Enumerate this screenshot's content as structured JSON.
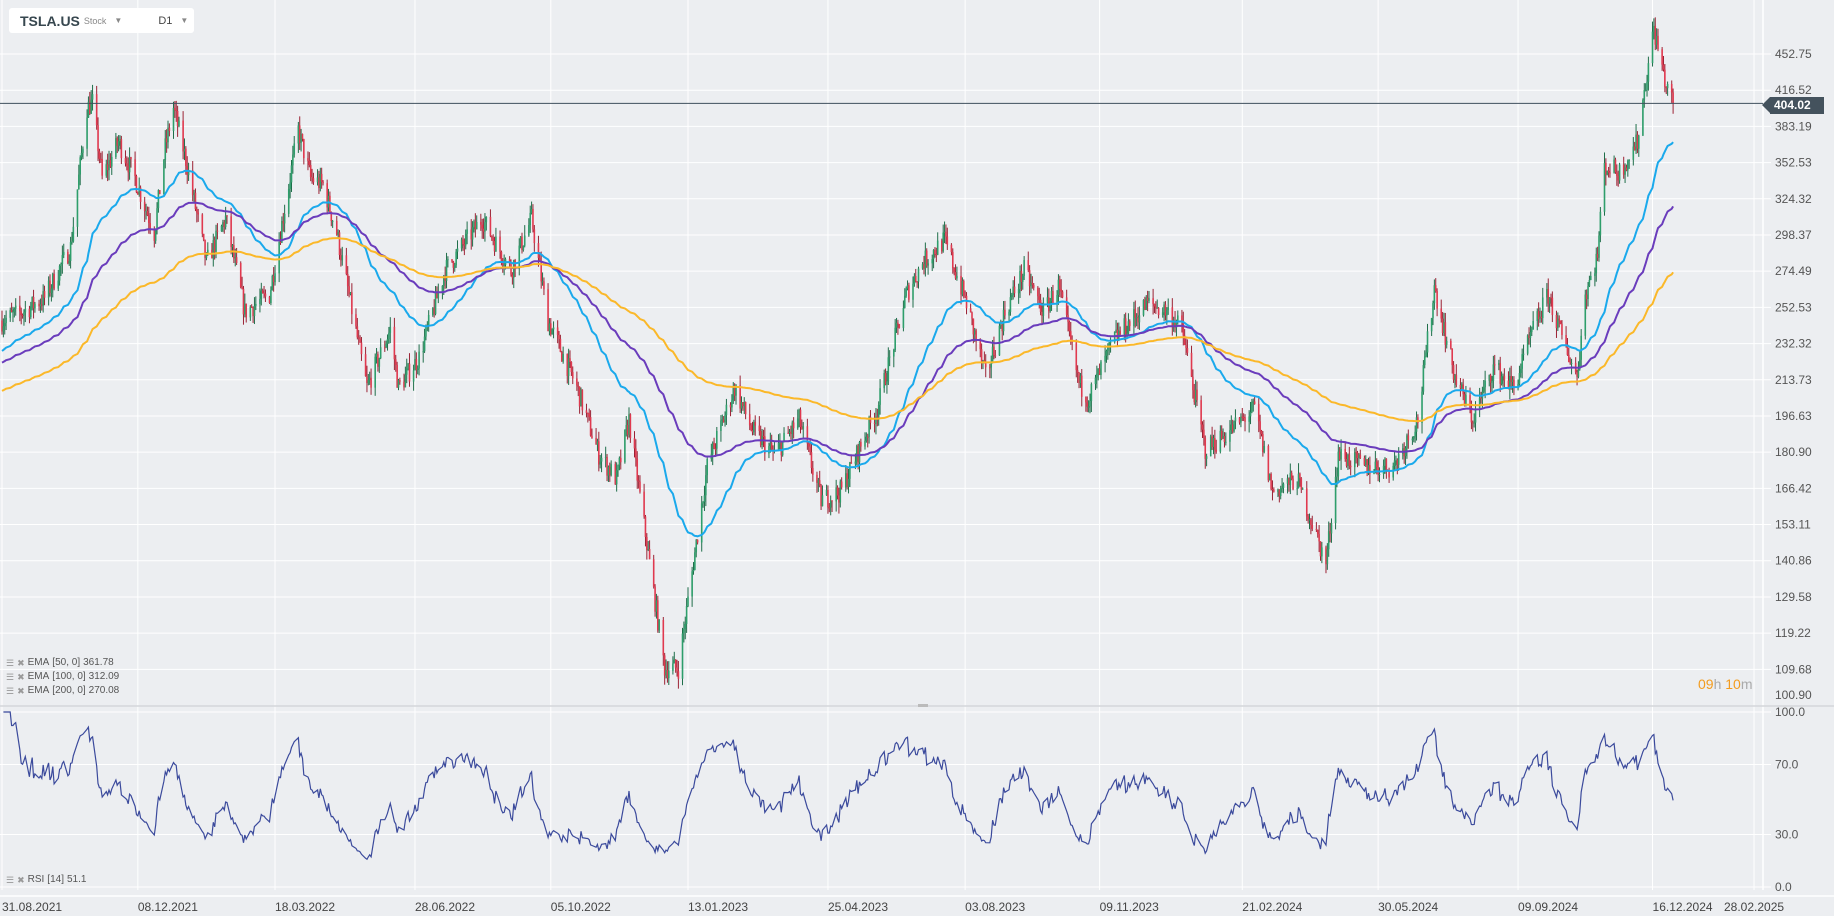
{
  "header": {
    "symbol": "TSLA.US",
    "type": "Stock",
    "timeframe": "D1"
  },
  "indicators": [
    {
      "label": "EMA",
      "params": "[50,  0]",
      "value": "361.78",
      "color": "#1aa9ec",
      "period": 50
    },
    {
      "label": "EMA",
      "params": "[100,  0]",
      "value": "312.09",
      "color": "#6a3cbc",
      "period": 100
    },
    {
      "label": "EMA",
      "params": "[200,  0]",
      "value": "270.08",
      "color": "#fbb829",
      "period": 200
    }
  ],
  "rsi": {
    "label": "RSI",
    "params": "[14]",
    "value": "51.1",
    "color": "#3b4a9c"
  },
  "current_price": "404.02",
  "countdown": {
    "hours": "09",
    "h": "h",
    "minutes": "10",
    "m": "m"
  },
  "chart_data": {
    "type": "candlestick",
    "price_axis_labels": [
      "452.75",
      "416.52",
      "383.19",
      "352.53",
      "324.32",
      "298.37",
      "274.49",
      "252.53",
      "232.32",
      "213.73",
      "196.63",
      "180.90",
      "166.42",
      "153.11",
      "140.86",
      "129.58",
      "119.22",
      "109.68",
      "100.90"
    ],
    "rsi_axis_labels": [
      "100.0",
      "70.0",
      "30.0",
      "0.0"
    ],
    "date_labels": [
      "31.08.2021",
      "08.12.2021",
      "18.03.2022",
      "28.06.2022",
      "05.10.2022",
      "13.01.2023",
      "25.04.2023",
      "03.08.2023",
      "09.11.2023",
      "21.02.2024",
      "30.05.2024",
      "09.09.2024",
      "16.12.2024",
      "28.02.2025"
    ],
    "date_iso": [
      "2021-08-31",
      "2021-12-08",
      "2022-03-18",
      "2022-06-28",
      "2022-10-05",
      "2023-01-13",
      "2023-04-25",
      "2023-08-03",
      "2023-11-09",
      "2024-02-21",
      "2024-05-30",
      "2024-09-09",
      "2024-12-16",
      "2025-02-28"
    ],
    "colors": {
      "up": "#2e9e6b",
      "down": "#e0394f"
    },
    "approx_closes": [
      [
        "2021-08-31",
        245
      ],
      [
        "2021-09-15",
        250
      ],
      [
        "2021-10-01",
        258
      ],
      [
        "2021-10-20",
        290
      ],
      [
        "2021-11-01",
        400
      ],
      [
        "2021-11-05",
        405
      ],
      [
        "2021-11-12",
        340
      ],
      [
        "2021-11-24",
        370
      ],
      [
        "2021-12-06",
        340
      ],
      [
        "2021-12-20",
        300
      ],
      [
        "2021-12-28",
        365
      ],
      [
        "2022-01-03",
        400
      ],
      [
        "2022-01-12",
        355
      ],
      [
        "2022-01-27",
        280
      ],
      [
        "2022-02-10",
        310
      ],
      [
        "2022-02-24",
        250
      ],
      [
        "2022-03-14",
        260
      ],
      [
        "2022-04-04",
        380
      ],
      [
        "2022-04-13",
        340
      ],
      [
        "2022-04-22",
        335
      ],
      [
        "2022-05-02",
        300
      ],
      [
        "2022-05-24",
        210
      ],
      [
        "2022-06-10",
        240
      ],
      [
        "2022-06-16",
        210
      ],
      [
        "2022-07-01",
        225
      ],
      [
        "2022-07-20",
        275
      ],
      [
        "2022-08-16",
        310
      ],
      [
        "2022-09-06",
        275
      ],
      [
        "2022-09-21",
        310
      ],
      [
        "2022-10-03",
        245
      ],
      [
        "2022-10-24",
        210
      ],
      [
        "2022-11-09",
        180
      ],
      [
        "2022-11-22",
        170
      ],
      [
        "2022-12-01",
        195
      ],
      [
        "2022-12-27",
        110
      ],
      [
        "2023-01-06",
        110
      ],
      [
        "2023-01-27",
        175
      ],
      [
        "2023-02-16",
        210
      ],
      [
        "2023-03-01",
        190
      ],
      [
        "2023-03-17",
        180
      ],
      [
        "2023-04-04",
        195
      ],
      [
        "2023-04-20",
        162
      ],
      [
        "2023-05-04",
        165
      ],
      [
        "2023-05-31",
        200
      ],
      [
        "2023-06-21",
        260
      ],
      [
        "2023-07-03",
        280
      ],
      [
        "2023-07-19",
        295
      ],
      [
        "2023-08-04",
        255
      ],
      [
        "2023-08-18",
        215
      ],
      [
        "2023-09-01",
        250
      ],
      [
        "2023-09-15",
        275
      ],
      [
        "2023-09-29",
        250
      ],
      [
        "2023-10-10",
        265
      ],
      [
        "2023-10-25",
        212
      ],
      [
        "2023-11-01",
        205
      ],
      [
        "2023-11-20",
        235
      ],
      [
        "2023-12-14",
        255
      ],
      [
        "2023-12-29",
        250
      ],
      [
        "2024-01-08",
        240
      ],
      [
        "2024-01-25",
        182
      ],
      [
        "2024-02-12",
        190
      ],
      [
        "2024-03-01",
        200
      ],
      [
        "2024-03-14",
        165
      ],
      [
        "2024-04-01",
        170
      ],
      [
        "2024-04-22",
        140
      ],
      [
        "2024-05-01",
        180
      ],
      [
        "2024-05-20",
        175
      ],
      [
        "2024-06-10",
        175
      ],
      [
        "2024-06-28",
        195
      ],
      [
        "2024-07-10",
        265
      ],
      [
        "2024-07-25",
        215
      ],
      [
        "2024-08-07",
        195
      ],
      [
        "2024-08-22",
        220
      ],
      [
        "2024-09-06",
        210
      ],
      [
        "2024-09-20",
        240
      ],
      [
        "2024-10-01",
        260
      ],
      [
        "2024-10-10",
        238
      ],
      [
        "2024-10-22",
        215
      ],
      [
        "2024-10-28",
        260
      ],
      [
        "2024-11-06",
        285
      ],
      [
        "2024-11-11",
        350
      ],
      [
        "2024-11-22",
        345
      ],
      [
        "2024-12-05",
        370
      ],
      [
        "2024-12-11",
        425
      ],
      [
        "2024-12-17",
        480
      ],
      [
        "2024-12-26",
        420
      ],
      [
        "2024-12-31",
        404.02
      ]
    ]
  }
}
